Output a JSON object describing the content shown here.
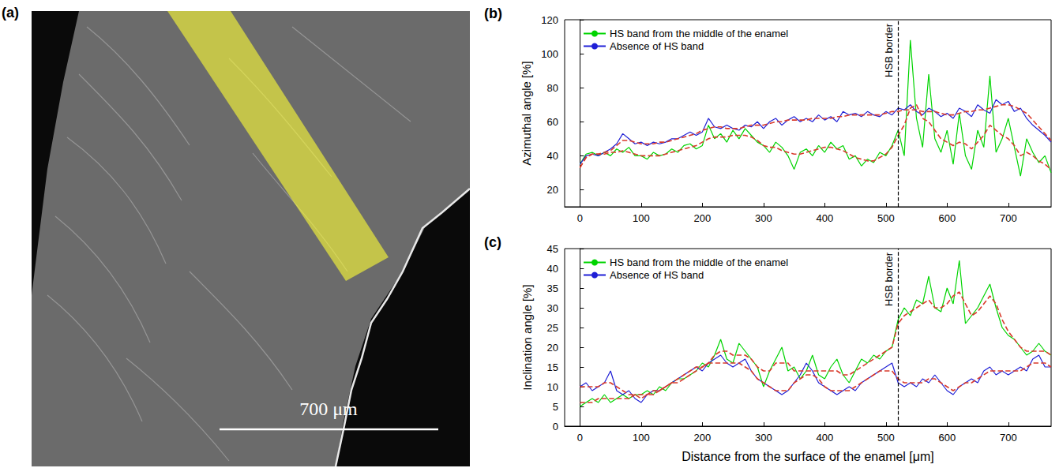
{
  "panel_a": {
    "label": "(a)",
    "scale_bar": "700 μm"
  },
  "chart_data": [
    {
      "panel": "(b)",
      "type": "line",
      "y_label": "Azimuthal angle [%]",
      "legend": "upper left",
      "xlim": [
        -25,
        770
      ],
      "xticks": [
        0,
        100,
        200,
        300,
        400,
        500,
        600,
        700
      ],
      "ylim": [
        10,
        120
      ],
      "yticks": [
        20,
        40,
        60,
        80,
        100,
        120
      ],
      "annotations": [
        {
          "x": 520,
          "text": "HSB border"
        }
      ],
      "x": [
        0,
        10,
        20,
        30,
        40,
        50,
        60,
        70,
        80,
        90,
        100,
        110,
        120,
        130,
        140,
        150,
        160,
        170,
        180,
        190,
        200,
        210,
        220,
        230,
        240,
        250,
        260,
        270,
        280,
        290,
        300,
        310,
        320,
        330,
        340,
        350,
        360,
        370,
        380,
        390,
        400,
        410,
        420,
        430,
        440,
        450,
        460,
        470,
        480,
        490,
        500,
        510,
        520,
        530,
        540,
        550,
        560,
        570,
        580,
        590,
        600,
        610,
        620,
        630,
        640,
        650,
        660,
        670,
        680,
        690,
        700,
        710,
        720,
        730,
        740,
        750,
        760,
        770
      ],
      "series": [
        {
          "name": "HS band from the middle of the enamel",
          "color": "#00d400",
          "line_style": "solid",
          "values": [
            35,
            41,
            42,
            40,
            42,
            40,
            44,
            42,
            45,
            40,
            40,
            38,
            42,
            40,
            41,
            44,
            42,
            46,
            47,
            44,
            46,
            58,
            50,
            53,
            48,
            55,
            50,
            56,
            52,
            48,
            46,
            42,
            48,
            45,
            40,
            32,
            42,
            44,
            40,
            46,
            42,
            48,
            44,
            46,
            38,
            40,
            34,
            38,
            36,
            42,
            40,
            46,
            55,
            40,
            108,
            62,
            45,
            88,
            50,
            42,
            55,
            35,
            65,
            40,
            32,
            55,
            45,
            87,
            42,
            50,
            62,
            45,
            28,
            50,
            42,
            36,
            40,
            30
          ]
        },
        {
          "name": "Absence of HS band",
          "color": "#1f1fd6",
          "line_style": "solid",
          "values": [
            35,
            40,
            41,
            40,
            42,
            44,
            47,
            53,
            50,
            47,
            48,
            46,
            48,
            47,
            48,
            50,
            50,
            52,
            54,
            52,
            54,
            62,
            57,
            56,
            58,
            56,
            55,
            58,
            57,
            60,
            56,
            60,
            62,
            58,
            61,
            63,
            60,
            62,
            60,
            64,
            61,
            63,
            60,
            66,
            64,
            65,
            63,
            66,
            64,
            63,
            66,
            64,
            68,
            67,
            70,
            66,
            64,
            68,
            66,
            63,
            65,
            62,
            68,
            66,
            63,
            70,
            67,
            65,
            73,
            70,
            72,
            66,
            68,
            62,
            58,
            55,
            52,
            48
          ]
        },
        {
          "color": "#d93a2b",
          "line_style": "dashed",
          "values": [
            33,
            39,
            41,
            41,
            41,
            42,
            42,
            43,
            42,
            41,
            40,
            40,
            40,
            40,
            41,
            42,
            43,
            44,
            45,
            46,
            48,
            50,
            51,
            51,
            51,
            52,
            52,
            52,
            51,
            49,
            46,
            45,
            45,
            43,
            42,
            41,
            41,
            42,
            43,
            44,
            45,
            45,
            44,
            43,
            41,
            39,
            38,
            37,
            37,
            39,
            41,
            45,
            52,
            58,
            68,
            70,
            62,
            60,
            55,
            50,
            48,
            46,
            48,
            47,
            44,
            48,
            52,
            58,
            55,
            52,
            50,
            46,
            40,
            42,
            40,
            37,
            35,
            32
          ]
        },
        {
          "color": "#d93a2b",
          "line_style": "dashed",
          "values": [
            33,
            39,
            41,
            41,
            42,
            43,
            46,
            49,
            49,
            48,
            47,
            47,
            47,
            48,
            48,
            49,
            50,
            51,
            52,
            53,
            55,
            56,
            57,
            57,
            56,
            56,
            56,
            57,
            58,
            58,
            58,
            59,
            60,
            60,
            61,
            61,
            61,
            61,
            62,
            62,
            62,
            62,
            63,
            63,
            64,
            64,
            64,
            64,
            64,
            64,
            65,
            66,
            66,
            67,
            67,
            67,
            66,
            66,
            66,
            65,
            64,
            64,
            65,
            66,
            66,
            67,
            67,
            68,
            69,
            70,
            70,
            69,
            67,
            65,
            61,
            57,
            53,
            49
          ]
        }
      ]
    },
    {
      "panel": "(c)",
      "type": "line",
      "y_label": "Inclination angle [%]",
      "x_label": "Distance from the surface of the enamel [μm]",
      "legend": "upper left",
      "xlim": [
        -25,
        770
      ],
      "xticks": [
        0,
        100,
        200,
        300,
        400,
        500,
        600,
        700
      ],
      "ylim": [
        0,
        45
      ],
      "yticks": [
        0,
        5,
        10,
        15,
        20,
        25,
        30,
        35,
        40,
        45
      ],
      "annotations": [
        {
          "x": 520,
          "text": "HSB border"
        }
      ],
      "x": [
        0,
        10,
        20,
        30,
        40,
        50,
        60,
        70,
        80,
        90,
        100,
        110,
        120,
        130,
        140,
        150,
        160,
        170,
        180,
        190,
        200,
        210,
        220,
        230,
        240,
        250,
        260,
        270,
        280,
        290,
        300,
        310,
        320,
        330,
        340,
        350,
        360,
        370,
        380,
        390,
        400,
        410,
        420,
        430,
        440,
        450,
        460,
        470,
        480,
        490,
        500,
        510,
        520,
        530,
        540,
        550,
        560,
        570,
        580,
        590,
        600,
        610,
        620,
        630,
        640,
        650,
        660,
        670,
        680,
        690,
        700,
        710,
        720,
        730,
        740,
        750,
        760,
        770
      ],
      "series": [
        {
          "name": "HS band from the middle of the enamel",
          "color": "#00d400",
          "line_style": "solid",
          "values": [
            5,
            6,
            7,
            6,
            8,
            6,
            7,
            8,
            7,
            8,
            8,
            9,
            8,
            10,
            9,
            11,
            12,
            12,
            13,
            14,
            16,
            15,
            18,
            22,
            17,
            16,
            21,
            19,
            17,
            15,
            10,
            14,
            17,
            20,
            14,
            15,
            12,
            14,
            18,
            13,
            12,
            15,
            17,
            13,
            11,
            14,
            17,
            16,
            18,
            17,
            19,
            20,
            27,
            30,
            28,
            32,
            31,
            38,
            30,
            29,
            35,
            31,
            42,
            26,
            28,
            30,
            33,
            36,
            30,
            25,
            23,
            22,
            20,
            18,
            19,
            21,
            19,
            18
          ]
        },
        {
          "name": "Absence of HS band",
          "color": "#1f1fd6",
          "line_style": "solid",
          "values": [
            10,
            11,
            9,
            10,
            11,
            14,
            9,
            8,
            9,
            7,
            6,
            8,
            9,
            9,
            10,
            11,
            12,
            13,
            14,
            15,
            14,
            16,
            17,
            18,
            16,
            15,
            16,
            17,
            14,
            12,
            11,
            10,
            9,
            8,
            9,
            11,
            13,
            16,
            14,
            11,
            10,
            9,
            8,
            9,
            10,
            9,
            11,
            12,
            13,
            14,
            15,
            16,
            11,
            10,
            11,
            10,
            12,
            11,
            13,
            11,
            9,
            8,
            10,
            11,
            12,
            11,
            14,
            15,
            13,
            14,
            13,
            14,
            15,
            14,
            17,
            18,
            15,
            15
          ]
        },
        {
          "color": "#d93a2b",
          "line_style": "dashed",
          "values": [
            6,
            6,
            6,
            7,
            7,
            7,
            7,
            7,
            7,
            8,
            8,
            8,
            9,
            9,
            10,
            11,
            11,
            12,
            13,
            14,
            15,
            16,
            18,
            19,
            19,
            18,
            18,
            18,
            17,
            15,
            14,
            14,
            16,
            16,
            16,
            14,
            14,
            14,
            14,
            14,
            14,
            14,
            14,
            13,
            13,
            14,
            15,
            16,
            17,
            18,
            19,
            20,
            26,
            28,
            29,
            30,
            31,
            32,
            30,
            30,
            31,
            33,
            34,
            31,
            28,
            29,
            31,
            33,
            31,
            27,
            24,
            22,
            20,
            19,
            19,
            19,
            19,
            18
          ]
        },
        {
          "color": "#d93a2b",
          "line_style": "dashed",
          "values": [
            10,
            10,
            10,
            10,
            11,
            11,
            10,
            9,
            8,
            8,
            7,
            8,
            8,
            9,
            10,
            11,
            12,
            13,
            14,
            15,
            15,
            16,
            16,
            16,
            16,
            16,
            16,
            15,
            14,
            12,
            11,
            10,
            9,
            9,
            9,
            11,
            12,
            13,
            13,
            12,
            10,
            9,
            9,
            9,
            9,
            10,
            11,
            12,
            13,
            14,
            14,
            14,
            12,
            11,
            11,
            11,
            11,
            12,
            12,
            11,
            10,
            9,
            10,
            11,
            11,
            12,
            13,
            14,
            14,
            14,
            14,
            14,
            14,
            15,
            16,
            16,
            16,
            15
          ]
        }
      ]
    }
  ]
}
